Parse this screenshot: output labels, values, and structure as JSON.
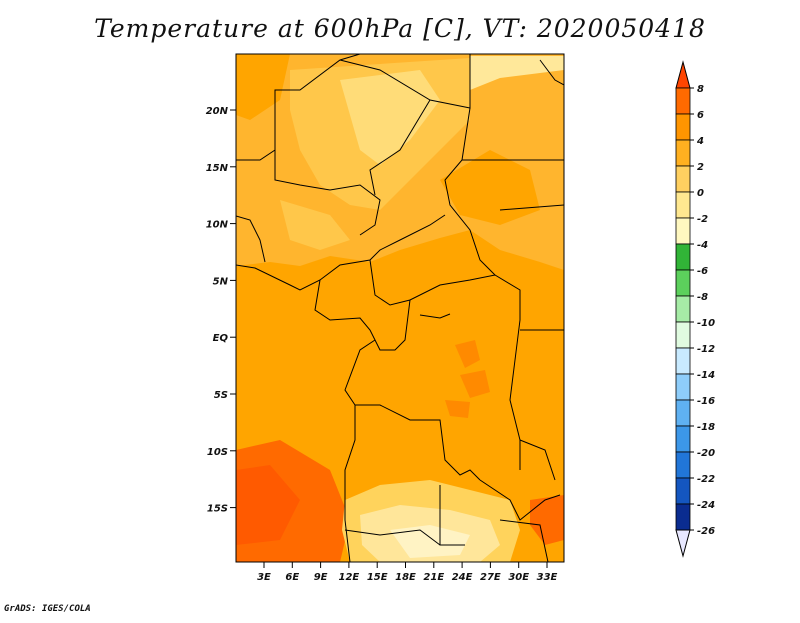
{
  "title": "Temperature at 600hPa [C], VT: 2020050418",
  "footer": "GrADS: IGES/COLA",
  "map": {
    "y_axis_ticks": [
      "20N",
      "15N",
      "10N",
      "5N",
      "EQ",
      "5S",
      "10S",
      "15S"
    ],
    "x_axis_ticks": [
      "3E",
      "6E",
      "9E",
      "12E",
      "15E",
      "18E",
      "21E",
      "24E",
      "27E",
      "30E",
      "33E"
    ]
  },
  "colorbar": {
    "labels": [
      "8",
      "6",
      "4",
      "2",
      "0",
      "-2",
      "-4",
      "-6",
      "-8",
      "-10",
      "-12",
      "-14",
      "-16",
      "-18",
      "-20",
      "-22",
      "-24",
      "-26"
    ],
    "colors": [
      "#ff4500",
      "#ff6a00",
      "#ff9500",
      "#ffb020",
      "#ffd060",
      "#ffe890",
      "#fff8c0",
      "#31b437",
      "#5cd05c",
      "#a6eca6",
      "#e0fbe0",
      "#c8eaff",
      "#8ecdfa",
      "#5fb1f2",
      "#3c97e8",
      "#2176d8",
      "#1456c0",
      "#0a2c90",
      "#00005a"
    ]
  }
}
